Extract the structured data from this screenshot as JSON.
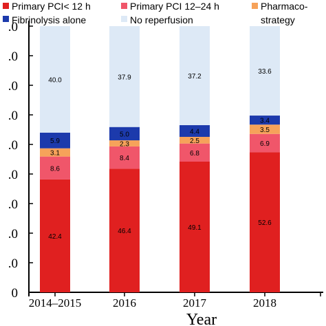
{
  "chart_data": {
    "type": "bar",
    "stacked": true,
    "categories": [
      "2014–2015",
      "2016",
      "2017",
      "2018"
    ],
    "series": [
      {
        "name": "Primary PCI< 12 h",
        "color": "#e02020",
        "values": [
          42.4,
          46.4,
          49.1,
          52.6
        ]
      },
      {
        "name": "Primary PCI 12–24 h",
        "color": "#f0566a",
        "values": [
          8.6,
          8.4,
          6.8,
          6.9
        ]
      },
      {
        "name": "Pharmaco-strategy",
        "color": "#f6a25a",
        "values": [
          3.1,
          2.3,
          2.5,
          3.5
        ]
      },
      {
        "name": "Fibrinolysis alone",
        "color": "#1c3aac",
        "values": [
          5.9,
          5.0,
          4.4,
          3.4
        ]
      },
      {
        "name": "No reperfusion",
        "color": "#dde9f6",
        "values": [
          40.0,
          37.9,
          37.2,
          33.6
        ]
      }
    ],
    "legend_lines": {
      "row1": [
        "Primary PCI< 12 h",
        "Primary PCI 12–24 h",
        "Pharmaco-"
      ],
      "row2": [
        "Fibrinolysis alone",
        "No reperfusion",
        "strategy"
      ]
    },
    "yticks": [
      "0",
      ".0",
      ".0",
      ".0",
      ".0",
      ".0",
      ".0",
      ".0",
      ".0",
      ".0"
    ],
    "ylim": [
      0,
      100
    ],
    "xlabel": "Year",
    "ylabel": "",
    "title": "",
    "grid": false,
    "legend_position": "top"
  }
}
